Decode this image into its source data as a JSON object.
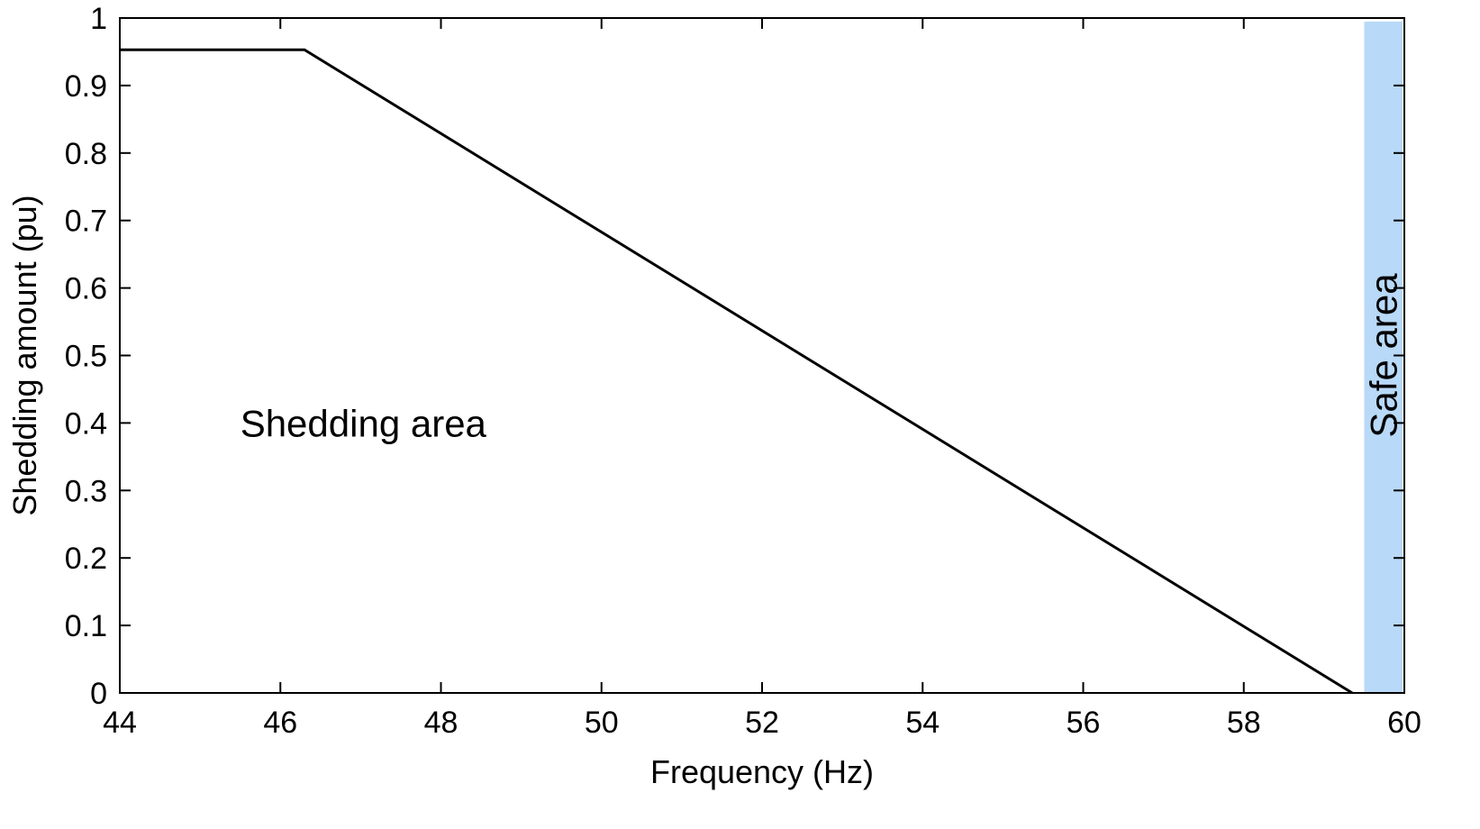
{
  "chart_data": {
    "type": "line",
    "xlabel": "Frequency (Hz)",
    "ylabel": "Shedding amount (pu)",
    "xlim": [
      44,
      60
    ],
    "ylim": [
      0,
      1
    ],
    "x_ticks": [
      "44",
      "46",
      "48",
      "50",
      "52",
      "54",
      "56",
      "58",
      "60"
    ],
    "y_ticks": [
      "0",
      "0.1",
      "0.2",
      "0.3",
      "0.4",
      "0.5",
      "0.6",
      "0.7",
      "0.8",
      "0.9",
      "1"
    ],
    "grid": false,
    "series": [
      {
        "x": [
          44,
          46.3,
          59.35
        ],
        "y": [
          0.953,
          0.953,
          0
        ]
      }
    ],
    "regions": [
      {
        "label": "Safe area",
        "x_start": 59.5,
        "x_end": 60,
        "color": "#b8d9f7"
      }
    ],
    "annotations": [
      {
        "text": "Shedding area",
        "x": 45.5,
        "y": 0.38
      }
    ],
    "line_color": "#000000"
  }
}
